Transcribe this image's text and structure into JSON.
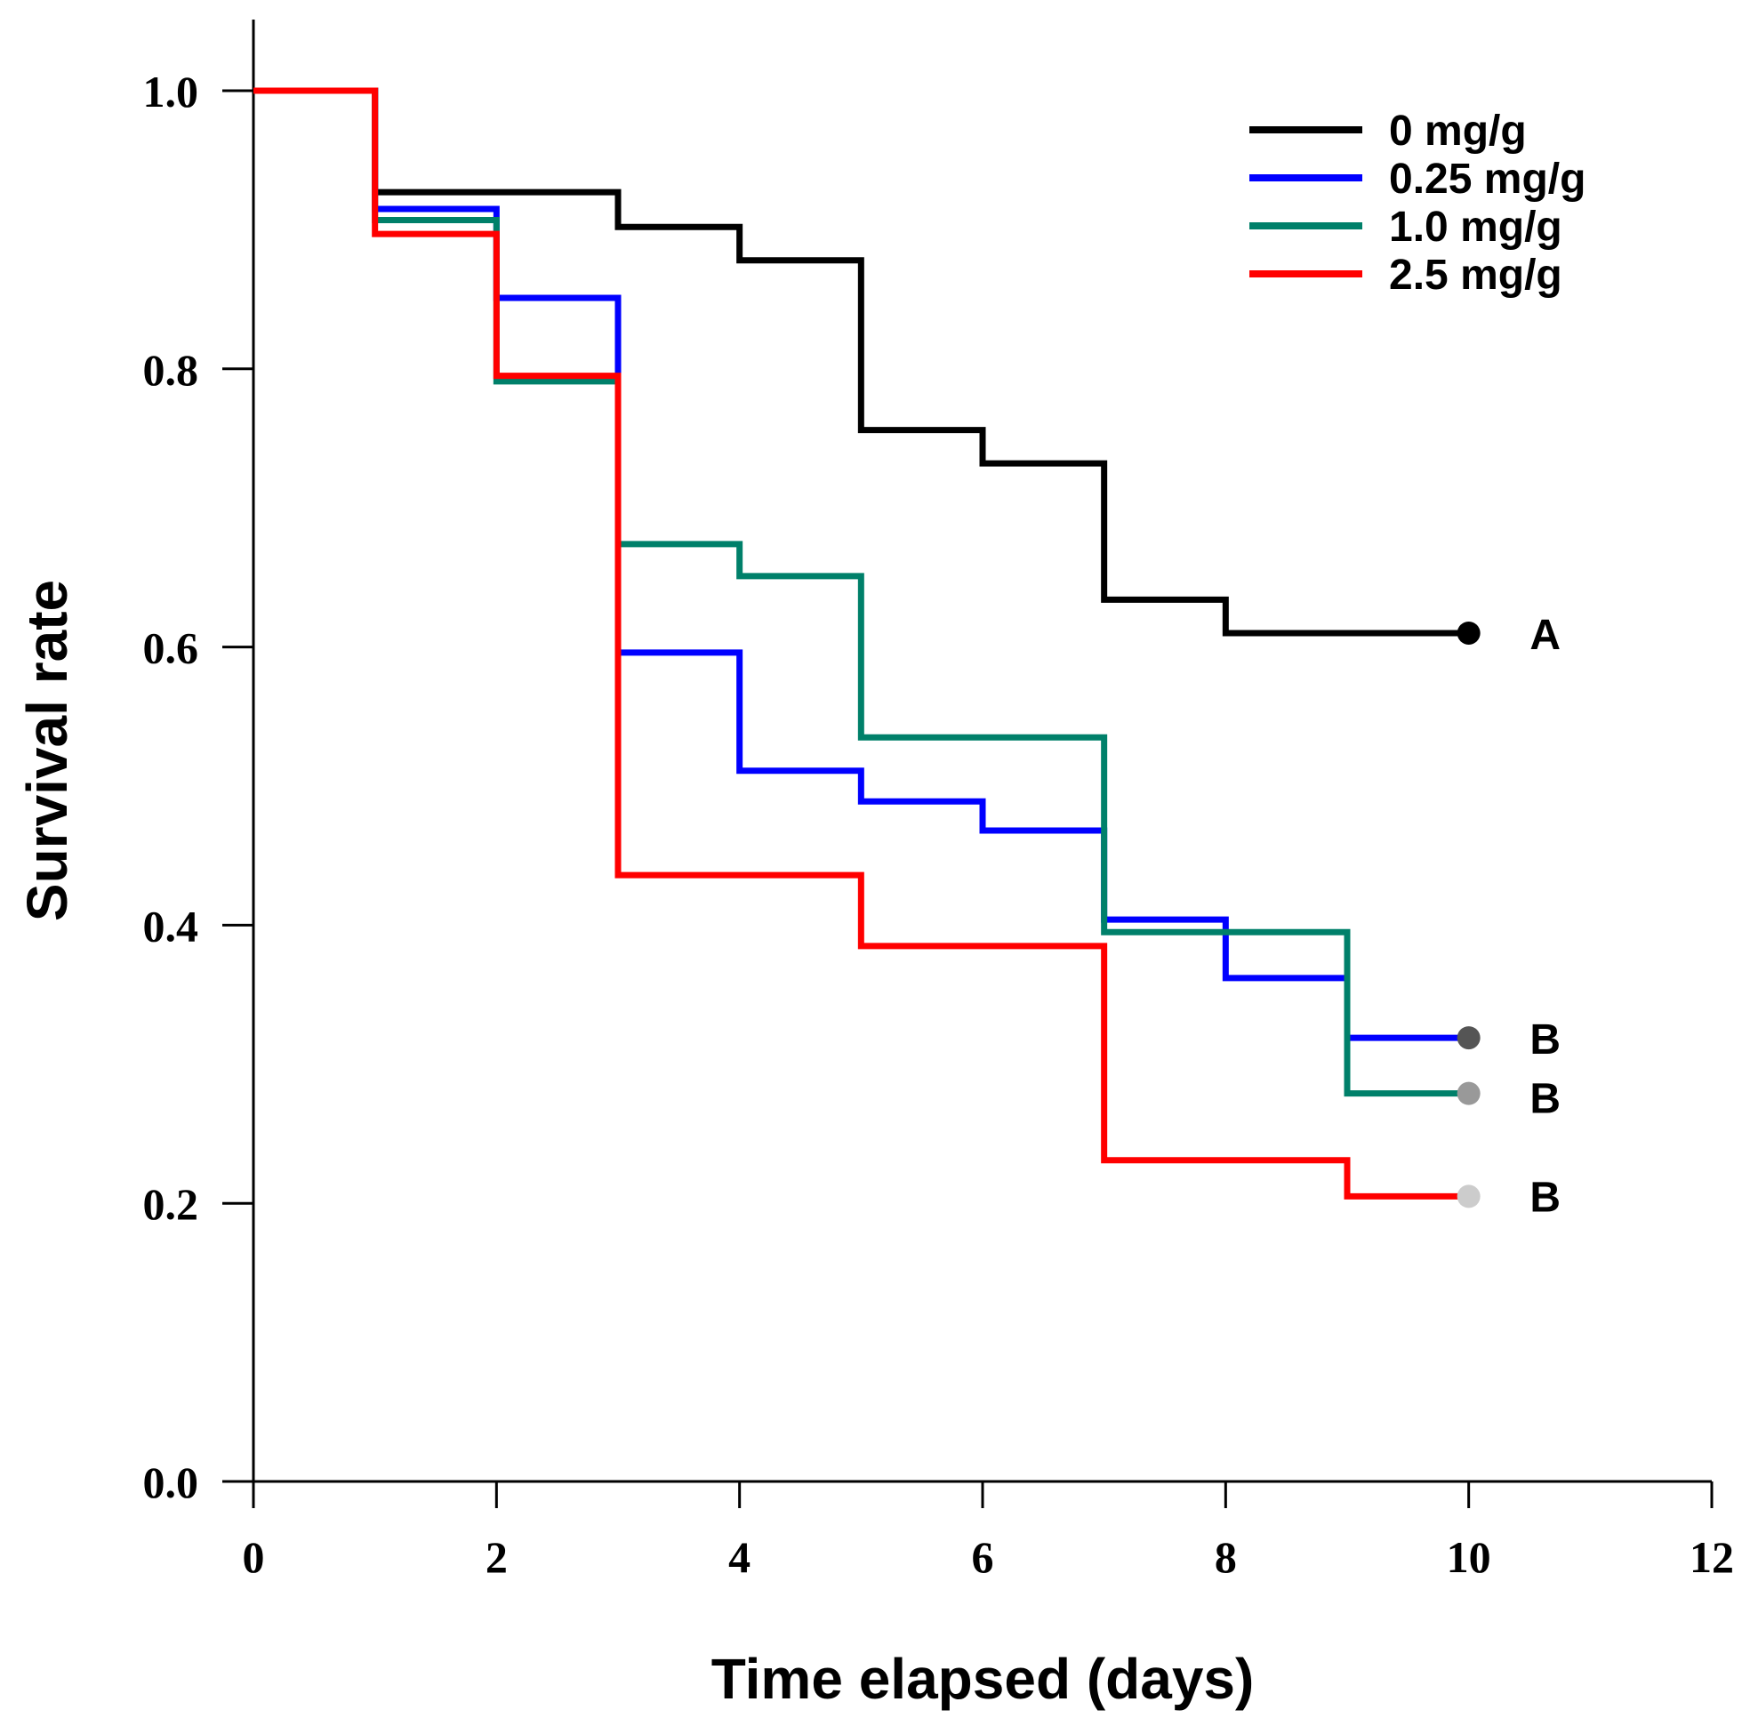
{
  "chart_data": {
    "type": "line",
    "step": true,
    "title": "",
    "xlabel": "Time elapsed (days)",
    "ylabel": "Survival rate",
    "xlim": [
      0,
      12
    ],
    "ylim": [
      0,
      1.05
    ],
    "xticks": [
      0,
      2,
      4,
      6,
      8,
      10,
      12
    ],
    "yticks": [
      0.0,
      0.2,
      0.4,
      0.6,
      0.8,
      1.0
    ],
    "xtick_labels": [
      "0",
      "2",
      "4",
      "6",
      "8",
      "10",
      "12"
    ],
    "ytick_labels": [
      "0.0",
      "0.2",
      "0.4",
      "0.6",
      "0.8",
      "1.0"
    ],
    "legend_position": "top-right",
    "series": [
      {
        "name": "0 mg/g",
        "color": "#000000",
        "x": [
          0,
          1,
          2,
          3,
          4,
          5,
          6,
          7,
          8,
          9,
          10
        ],
        "y": [
          1.0,
          0.927,
          0.927,
          0.902,
          0.878,
          0.756,
          0.732,
          0.634,
          0.61,
          0.61,
          0.61
        ],
        "end_marker_color": "#000000",
        "group_label": "A"
      },
      {
        "name": "0.25 mg/g",
        "color": "#0000FF",
        "x": [
          0,
          1,
          2,
          3,
          4,
          5,
          6,
          7,
          8,
          9,
          10
        ],
        "y": [
          1.0,
          0.915,
          0.851,
          0.596,
          0.511,
          0.489,
          0.468,
          0.404,
          0.362,
          0.319,
          0.319
        ],
        "end_marker_color": "#555555",
        "group_label": "B"
      },
      {
        "name": "1.0 mg/g",
        "color": "#00806A",
        "x": [
          0,
          1,
          2,
          3,
          4,
          5,
          6,
          7,
          8,
          9,
          10
        ],
        "y": [
          1.0,
          0.907,
          0.791,
          0.674,
          0.651,
          0.535,
          0.535,
          0.395,
          0.395,
          0.279,
          0.279
        ],
        "end_marker_color": "#999999",
        "group_label": "B"
      },
      {
        "name": "2.5 mg/g",
        "color": "#FF0000",
        "x": [
          0,
          1,
          2,
          3,
          4,
          5,
          6,
          7,
          8,
          9,
          10
        ],
        "y": [
          1.0,
          0.897,
          0.795,
          0.436,
          0.436,
          0.385,
          0.385,
          0.231,
          0.231,
          0.205,
          0.205
        ],
        "end_marker_color": "#CCCCCC",
        "group_label": "B"
      }
    ]
  }
}
